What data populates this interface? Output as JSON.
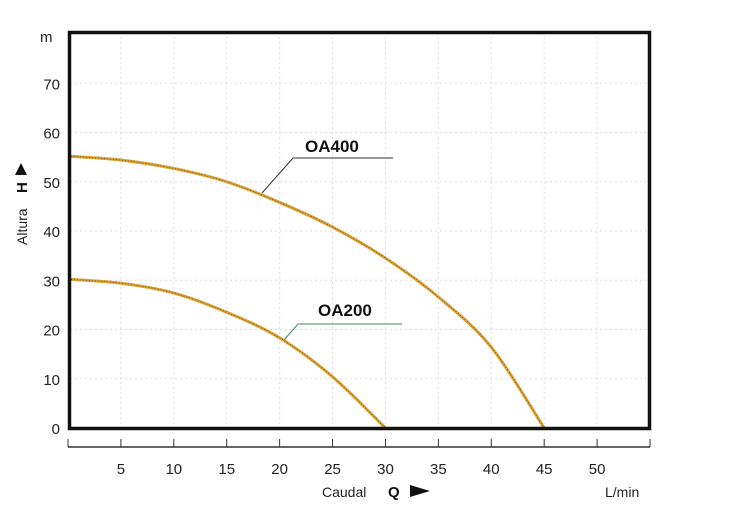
{
  "chart_data": {
    "type": "line",
    "xlabel": "Caudal",
    "xlabel_symbol": "Q",
    "xunit": "L/min",
    "ylabel": "Altura",
    "ylabel_symbol": "H",
    "yunit": "m",
    "xlim": [
      0,
      55
    ],
    "ylim": [
      0,
      80
    ],
    "xticks": [
      5,
      10,
      15,
      20,
      25,
      30,
      35,
      40,
      45,
      50
    ],
    "yticks": [
      0,
      10,
      20,
      30,
      40,
      50,
      60,
      70
    ],
    "grid": true,
    "series": [
      {
        "name": "OA400",
        "color": "#d9a032",
        "x": [
          0,
          5,
          10,
          15,
          20,
          25,
          30,
          35,
          40,
          45
        ],
        "y": [
          55.2,
          54.4,
          52.7,
          50,
          45.8,
          40.8,
          34.5,
          26.6,
          16.4,
          0
        ]
      },
      {
        "name": "OA200",
        "color": "#d9a032",
        "x": [
          0,
          5,
          10,
          15,
          20,
          25,
          30
        ],
        "y": [
          30.2,
          29.4,
          27.4,
          23.5,
          18.3,
          10.4,
          0
        ]
      }
    ]
  }
}
